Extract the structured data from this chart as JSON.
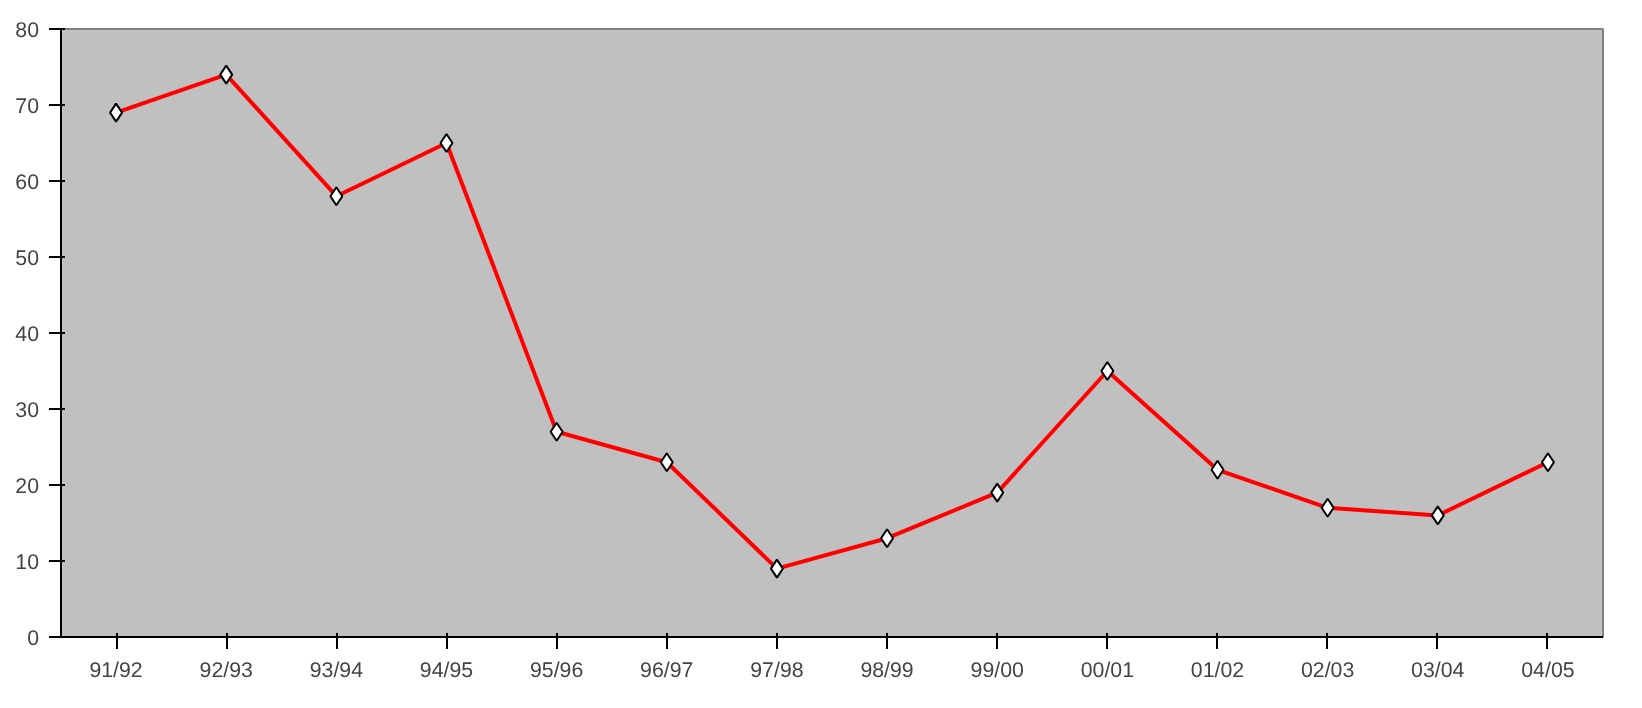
{
  "chart_data": {
    "type": "line",
    "categories": [
      "91/92",
      "92/93",
      "93/94",
      "94/95",
      "95/96",
      "96/97",
      "97/98",
      "98/99",
      "99/00",
      "00/01",
      "01/02",
      "02/03",
      "03/04",
      "04/05"
    ],
    "series": [
      {
        "color": "#ff0000",
        "values": [
          69,
          74,
          58,
          65,
          27,
          23,
          9,
          13,
          19,
          35,
          22,
          17,
          16,
          23
        ]
      }
    ],
    "ylim": [
      0,
      80
    ],
    "yticks": [
      0,
      10,
      20,
      30,
      40,
      50,
      60,
      70,
      80
    ],
    "grid": false,
    "marker": "diamond",
    "line_style": "solid"
  }
}
